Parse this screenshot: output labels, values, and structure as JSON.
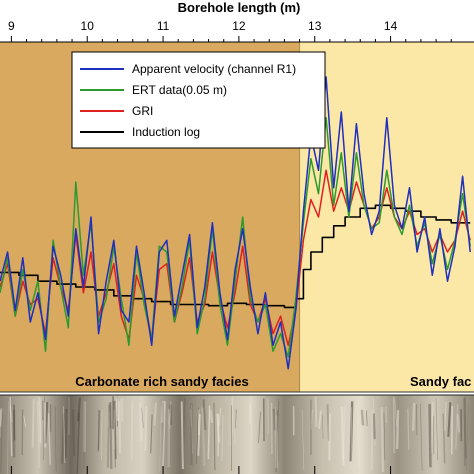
{
  "chart_data": {
    "type": "line",
    "xlabel": "Borehole length (m)",
    "xlim": [
      8.85,
      15.1
    ],
    "ylim": [
      -2.2,
      3.8
    ],
    "xticks": [
      "9",
      "10",
      "11",
      "12",
      "13",
      "14"
    ],
    "grid": false,
    "legend_placement": "top-center",
    "facies": [
      {
        "label": "Carbonate rich sandy facies",
        "from": 8.85,
        "to": 12.8,
        "color": "#d9a95f"
      },
      {
        "label": "Sandy fac",
        "from": 12.8,
        "to": 15.1,
        "color": "#fbe7a6"
      }
    ],
    "series": [
      {
        "name": "Apparent velocity (channel R1)",
        "color": "#1f2fbf",
        "x": [
          8.85,
          8.95,
          9.05,
          9.15,
          9.25,
          9.35,
          9.45,
          9.55,
          9.65,
          9.75,
          9.85,
          9.95,
          10.05,
          10.15,
          10.25,
          10.35,
          10.45,
          10.55,
          10.65,
          10.75,
          10.85,
          10.95,
          11.05,
          11.15,
          11.25,
          11.35,
          11.45,
          11.55,
          11.65,
          11.75,
          11.85,
          11.95,
          12.05,
          12.15,
          12.25,
          12.35,
          12.45,
          12.55,
          12.65,
          12.75,
          12.85,
          12.95,
          13.05,
          13.15,
          13.25,
          13.35,
          13.45,
          13.55,
          13.65,
          13.75,
          13.85,
          13.95,
          14.05,
          14.15,
          14.25,
          14.35,
          14.45,
          14.55,
          14.65,
          14.75,
          14.85,
          14.95,
          15.05
        ],
        "values": [
          -0.3,
          0.2,
          -0.8,
          0.1,
          -1.0,
          -0.5,
          -1.3,
          0.3,
          -0.2,
          -0.9,
          0.6,
          -0.4,
          0.8,
          -1.2,
          -0.3,
          0.4,
          -0.8,
          -1.0,
          0.3,
          -0.5,
          -1.4,
          0.2,
          0.4,
          -0.9,
          -0.2,
          0.5,
          -1.1,
          -0.4,
          0.7,
          -0.5,
          -1.3,
          -0.1,
          0.6,
          -0.4,
          -1.2,
          -0.5,
          -1.4,
          -1.0,
          -1.8,
          -0.8,
          0.9,
          2.2,
          1.6,
          3.2,
          1.3,
          2.6,
          0.9,
          2.4,
          1.2,
          0.5,
          0.9,
          2.5,
          1.0,
          0.6,
          1.3,
          0.2,
          0.8,
          -0.2,
          0.6,
          -0.3,
          0.3,
          1.5,
          0.2
        ]
      },
      {
        "name": "ERT data(0.05 m)",
        "color": "#2e9a2e",
        "x": [
          8.85,
          8.95,
          9.05,
          9.15,
          9.25,
          9.35,
          9.45,
          9.55,
          9.65,
          9.75,
          9.85,
          9.95,
          10.05,
          10.15,
          10.25,
          10.35,
          10.45,
          10.55,
          10.65,
          10.75,
          10.85,
          10.95,
          11.05,
          11.15,
          11.25,
          11.35,
          11.45,
          11.55,
          11.65,
          11.75,
          11.85,
          11.95,
          12.05,
          12.15,
          12.25,
          12.35,
          12.45,
          12.55,
          12.65,
          12.75,
          12.85,
          12.95,
          13.05,
          13.15,
          13.25,
          13.35,
          13.45,
          13.55,
          13.65,
          13.75,
          13.85,
          13.95,
          14.05,
          14.15,
          14.25,
          14.35,
          14.45,
          14.55,
          14.65,
          14.75,
          14.85,
          14.95,
          15.05
        ],
        "values": [
          -0.5,
          0.1,
          -0.9,
          -0.1,
          -0.8,
          -0.3,
          -1.5,
          0.4,
          -0.4,
          -1.1,
          1.4,
          -0.2,
          0.7,
          -1.0,
          -0.6,
          0.3,
          -0.6,
          -1.4,
          0.2,
          -0.7,
          -1.3,
          0.3,
          0.2,
          -1.0,
          -0.4,
          0.4,
          -1.2,
          -0.6,
          0.6,
          -0.7,
          -1.4,
          -0.3,
          0.8,
          -0.6,
          -1.0,
          -0.7,
          -1.5,
          -1.2,
          -1.6,
          -0.6,
          0.7,
          1.8,
          1.2,
          2.5,
          1.0,
          1.9,
          0.8,
          1.9,
          1.0,
          0.6,
          0.7,
          1.6,
          0.8,
          0.5,
          1.0,
          0.3,
          0.7,
          0.0,
          0.5,
          -0.1,
          0.4,
          1.2,
          0.3
        ]
      },
      {
        "name": "GRI",
        "color": "#e02020",
        "x": [
          8.85,
          8.95,
          9.05,
          9.15,
          9.25,
          9.35,
          9.45,
          9.55,
          9.65,
          9.75,
          9.85,
          9.95,
          10.05,
          10.15,
          10.25,
          10.35,
          10.45,
          10.55,
          10.65,
          10.75,
          10.85,
          10.95,
          11.05,
          11.15,
          11.25,
          11.35,
          11.45,
          11.55,
          11.65,
          11.75,
          11.85,
          11.95,
          12.05,
          12.15,
          12.25,
          12.35,
          12.45,
          12.55,
          12.65,
          12.75,
          12.85,
          12.95,
          13.05,
          13.15,
          13.25,
          13.35,
          13.45,
          13.55,
          13.65,
          13.75,
          13.85,
          13.95,
          14.05,
          14.15,
          14.25,
          14.35,
          14.45,
          14.55,
          14.65,
          14.75,
          14.85,
          14.95,
          15.05
        ],
        "values": [
          -0.4,
          0.0,
          -0.9,
          -0.3,
          -0.7,
          -0.6,
          -1.2,
          0.1,
          -0.4,
          -0.8,
          0.5,
          -0.5,
          0.2,
          -0.9,
          -0.5,
          0.0,
          -0.9,
          -1.3,
          -0.2,
          -0.6,
          -1.3,
          -0.1,
          0.0,
          -1.0,
          -0.5,
          0.1,
          -1.0,
          -0.7,
          0.2,
          -0.6,
          -1.1,
          -0.5,
          0.3,
          -0.7,
          -1.0,
          -0.6,
          -1.2,
          -0.9,
          -1.4,
          -0.8,
          0.4,
          1.1,
          0.8,
          1.6,
          0.9,
          1.3,
          0.9,
          1.4,
          1.0,
          0.6,
          0.8,
          1.3,
          0.8,
          0.6,
          0.9,
          0.5,
          0.6,
          0.2,
          0.5,
          0.2,
          0.4,
          0.9,
          0.4
        ]
      },
      {
        "name": "Induction log",
        "color": "#000000",
        "x": [
          8.85,
          9.1,
          9.35,
          9.6,
          9.85,
          10.1,
          10.35,
          10.6,
          10.85,
          11.1,
          11.35,
          11.6,
          11.85,
          12.1,
          12.35,
          12.6,
          12.75,
          12.85,
          12.95,
          13.1,
          13.25,
          13.4,
          13.6,
          13.8,
          14.0,
          14.2,
          14.4,
          14.6,
          14.8,
          15.05
        ],
        "values": [
          -0.15,
          -0.2,
          -0.3,
          -0.35,
          -0.4,
          -0.45,
          -0.55,
          -0.6,
          -0.65,
          -0.7,
          -0.7,
          -0.72,
          -0.68,
          -0.7,
          -0.72,
          -0.75,
          -0.6,
          -0.1,
          0.2,
          0.45,
          0.65,
          0.8,
          0.95,
          1.0,
          0.95,
          0.9,
          0.8,
          0.75,
          0.7,
          0.7
        ]
      }
    ]
  }
}
